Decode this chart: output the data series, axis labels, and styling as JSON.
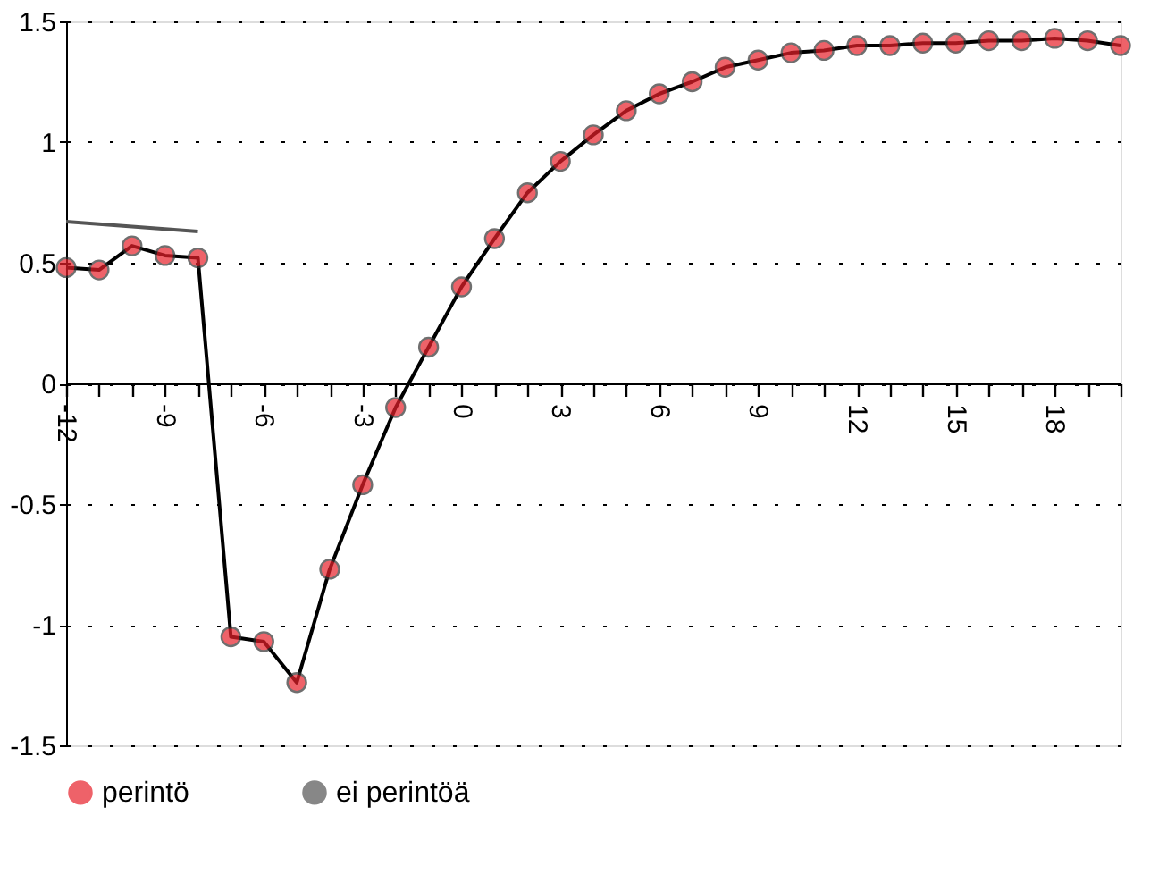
{
  "chart_data": {
    "type": "line",
    "x": [
      -12,
      -11,
      -10,
      -9,
      -8,
      -7,
      -6,
      -5,
      -4,
      -3,
      -2,
      -1,
      0,
      1,
      2,
      3,
      4,
      5,
      6,
      7,
      8,
      9,
      10,
      11,
      12,
      13,
      14,
      15,
      16,
      17,
      18,
      19,
      20
    ],
    "series": [
      {
        "name": "perintö",
        "color": "#e8202a",
        "marker": "circle",
        "values": [
          0.48,
          0.47,
          0.57,
          0.53,
          0.52,
          -1.05,
          -1.07,
          -1.24,
          -0.77,
          -0.42,
          -0.1,
          0.15,
          0.4,
          0.6,
          0.79,
          0.92,
          1.03,
          1.13,
          1.2,
          1.25,
          1.31,
          1.34,
          1.37,
          1.38,
          1.4,
          1.4,
          1.41,
          1.41,
          1.42,
          1.42,
          1.43,
          1.42,
          1.4
        ]
      },
      {
        "name": "ei perintöä",
        "color": "#555555",
        "marker": "none",
        "values": [
          0.67,
          0.66,
          0.65,
          0.64,
          0.63,
          null,
          null,
          null,
          null,
          null,
          null,
          null,
          null,
          null,
          null,
          null,
          null,
          null,
          null,
          null,
          null,
          null,
          null,
          null,
          null,
          null,
          null,
          null,
          null,
          null,
          null,
          null,
          null
        ]
      }
    ],
    "xlim": [
      -12,
      20
    ],
    "xticks": [
      -12,
      {
        "value": -11,
        "label": null
      },
      {
        "value": -10,
        "label": null
      },
      -9,
      {
        "value": -8,
        "label": null
      },
      {
        "value": -7,
        "label": null
      },
      -6,
      {
        "value": -5,
        "label": null
      },
      {
        "value": -4,
        "label": null
      },
      -3,
      {
        "value": -2,
        "label": null
      },
      {
        "value": -1,
        "label": null
      },
      0,
      {
        "value": 1,
        "label": null
      },
      {
        "value": 2,
        "label": null
      },
      3,
      {
        "value": 4,
        "label": null
      },
      {
        "value": 5,
        "label": null
      },
      6,
      {
        "value": 7,
        "label": null
      },
      {
        "value": 8,
        "label": null
      },
      9,
      {
        "value": 10,
        "label": null
      },
      {
        "value": 11,
        "label": null
      },
      12,
      {
        "value": 13,
        "label": null
      },
      {
        "value": 14,
        "label": null
      },
      15,
      {
        "value": 16,
        "label": null
      },
      {
        "value": 17,
        "label": null
      },
      18,
      {
        "value": 19,
        "label": null
      },
      {
        "value": 20,
        "label": null
      }
    ],
    "ylim": [
      -1.5,
      1.5
    ],
    "yticks": [
      -1.5,
      -1,
      -0.5,
      0,
      0.5,
      1,
      1.5
    ],
    "grid": "y",
    "legend": "bottom",
    "line_style": "solid"
  }
}
